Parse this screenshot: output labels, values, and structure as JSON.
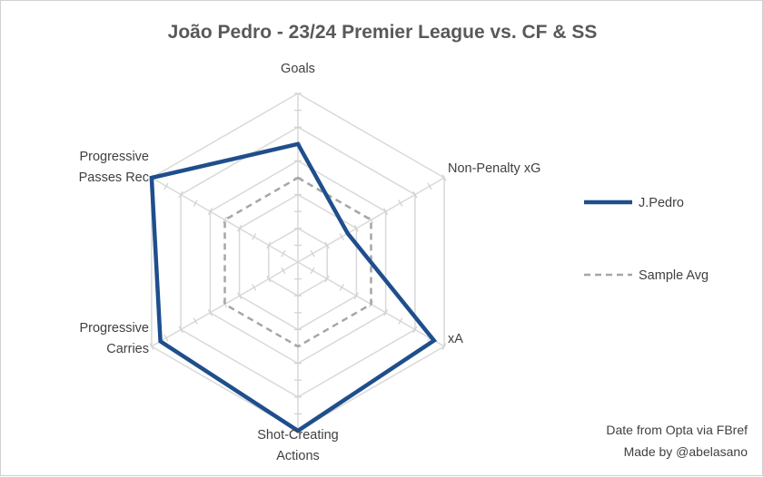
{
  "chart_data": {
    "type": "radar",
    "title": "João Pedro - 23/24 Premier League vs. CF & SS",
    "axes": [
      "Goals",
      "Non-Penalty xG",
      "xA",
      "Shot-Creating Actions",
      "Progressive Carries",
      "Progressive Passes Rec"
    ],
    "axis_label_lines": [
      [
        "Goals"
      ],
      [
        "Non-Penalty xG"
      ],
      [
        "xA"
      ],
      [
        "Shot-Creating",
        "Actions"
      ],
      [
        "Progressive",
        "Carries"
      ],
      [
        "Progressive",
        "Passes Rec"
      ]
    ],
    "range": [
      0,
      10
    ],
    "rings": 5,
    "grid": true,
    "series": [
      {
        "name": "J.Pedro",
        "values": [
          7.0,
          3.4,
          9.3,
          10.0,
          9.4,
          10.0
        ],
        "color": "#1f4e8c",
        "style": "solid"
      },
      {
        "name": "Sample Avg",
        "values": [
          5.0,
          5.0,
          5.0,
          5.0,
          5.0,
          5.0
        ],
        "color": "#a6a6a6",
        "style": "dashed"
      }
    ],
    "legend_position": "right",
    "credits": [
      "Date from Opta via FBref",
      "Made by @abelasano"
    ]
  }
}
